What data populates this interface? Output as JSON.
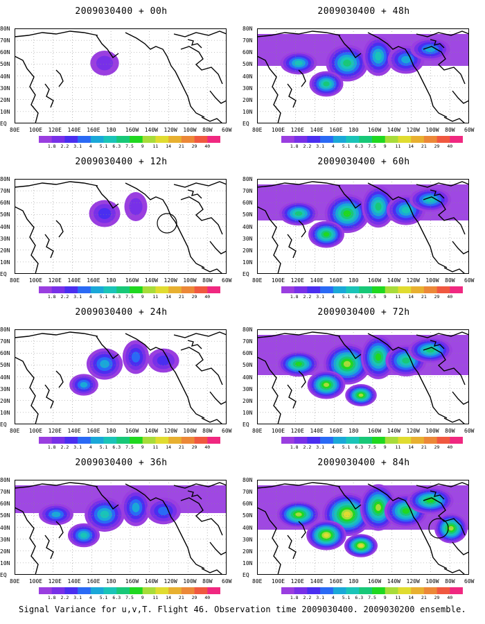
{
  "panels": [
    {
      "title": "2009030400 + 00h",
      "intensity": 0.15,
      "circle": false
    },
    {
      "title": "2009030400 + 12h",
      "intensity": 0.25,
      "circle": true
    },
    {
      "title": "2009030400 + 24h",
      "intensity": 0.45,
      "circle": false
    },
    {
      "title": "2009030400 + 36h",
      "intensity": 0.6,
      "circle": false
    },
    {
      "title": "2009030400 + 48h",
      "intensity": 0.7,
      "circle": false
    },
    {
      "title": "2009030400 + 60h",
      "intensity": 0.8,
      "circle": false
    },
    {
      "title": "2009030400 + 72h",
      "intensity": 0.9,
      "circle": false
    },
    {
      "title": "2009030400 + 84h",
      "intensity": 1.0,
      "circle": true
    }
  ],
  "lat_labels": [
    "80N",
    "70N",
    "60N",
    "50N",
    "40N",
    "30N",
    "20N",
    "10N",
    "EQ"
  ],
  "lon_labels": [
    "80E",
    "100E",
    "120E",
    "140E",
    "160E",
    "180",
    "160W",
    "140W",
    "120W",
    "100W",
    "80W",
    "60W"
  ],
  "colorbar": {
    "labels": [
      "1.8",
      "2.2",
      "3.1",
      "4",
      "5.1",
      "6.3",
      "7.5",
      "9",
      "11",
      "14",
      "21",
      "29",
      "40"
    ],
    "colors": [
      "#9a3ee0",
      "#7830e8",
      "#4a2ef0",
      "#2a6af5",
      "#1aa8d8",
      "#1ac4b8",
      "#18c878",
      "#20d820",
      "#a8dc3a",
      "#e0dc30",
      "#e8b030",
      "#ec8838",
      "#f05840",
      "#f02880"
    ]
  },
  "footer": "Signal Variance for u,v,T. Flight 46. Observation time 2009030400. 2009030200 ensemble."
}
